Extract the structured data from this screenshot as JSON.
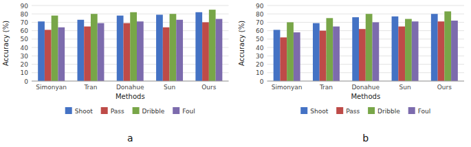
{
  "chart_data": [
    {
      "type": "bar",
      "title": "a",
      "categories": [
        "Simonyan",
        "Tran",
        "Donahue",
        "Sun",
        "Ours"
      ],
      "series": [
        {
          "name": "Shoot",
          "color": "#4472c4",
          "values": [
            71,
            73,
            78,
            79,
            82
          ]
        },
        {
          "name": "Pass",
          "color": "#be4b48",
          "values": [
            61,
            65,
            69,
            64,
            70
          ]
        },
        {
          "name": "Dribble",
          "color": "#78a648",
          "values": [
            78,
            80,
            82,
            80,
            85
          ]
        },
        {
          "name": "Foul",
          "color": "#7c6bad",
          "values": [
            64,
            69,
            71,
            73,
            74
          ]
        }
      ],
      "xlabel": "Methods",
      "ylabel": "Accuracy (%)",
      "ylim": [
        0,
        90
      ],
      "yticks": [
        0,
        10,
        20,
        30,
        40,
        50,
        60,
        70,
        80,
        90
      ],
      "grid": true,
      "legend": "bottom"
    },
    {
      "type": "bar",
      "title": "b",
      "categories": [
        "Simonyan",
        "Tran",
        "Donahue",
        "Sun",
        "Ours"
      ],
      "series": [
        {
          "name": "Shoot",
          "color": "#4472c4",
          "values": [
            61,
            69,
            76,
            77,
            80
          ]
        },
        {
          "name": "Pass",
          "color": "#be4b48",
          "values": [
            52,
            60,
            62,
            65,
            71
          ]
        },
        {
          "name": "Dribble",
          "color": "#78a648",
          "values": [
            70,
            75,
            80,
            74,
            83
          ]
        },
        {
          "name": "Foul",
          "color": "#7c6bad",
          "values": [
            58,
            65,
            70,
            71,
            72
          ]
        }
      ],
      "xlabel": "Methods",
      "ylabel": "Accuracy (%)",
      "ylim": [
        0,
        90
      ],
      "yticks": [
        0,
        10,
        20,
        30,
        40,
        50,
        60,
        70,
        80,
        90
      ],
      "grid": true,
      "legend": "bottom"
    }
  ]
}
